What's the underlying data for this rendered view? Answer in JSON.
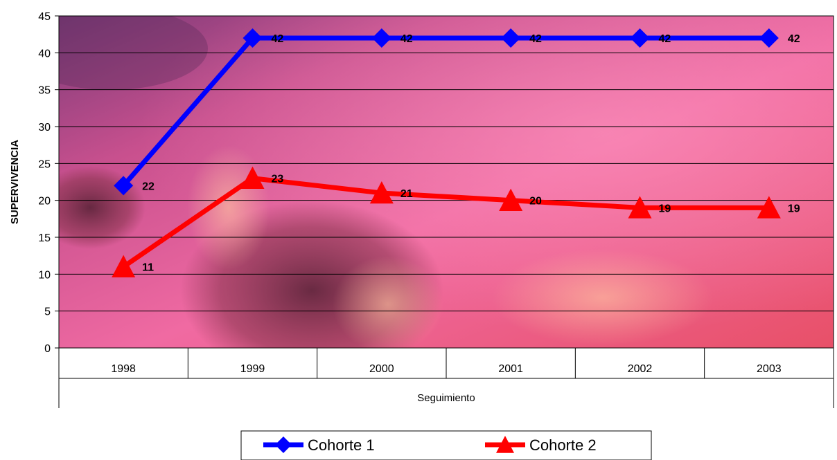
{
  "chart_data": {
    "type": "line",
    "categories": [
      "1998",
      "1999",
      "2000",
      "2001",
      "2002",
      "2003"
    ],
    "series": [
      {
        "name": "Cohorte 1",
        "values": [
          22,
          42,
          42,
          42,
          42,
          42
        ],
        "color": "#0000ff",
        "marker": "diamond"
      },
      {
        "name": "Cohorte 2",
        "values": [
          11,
          23,
          21,
          20,
          19,
          19
        ],
        "color": "#ff0000",
        "marker": "triangle"
      }
    ],
    "xlabel": "Seguimiento",
    "ylabel": "SUPERVIVENCIA",
    "ylim": [
      0,
      45
    ],
    "yticks": [
      "0",
      "5",
      "10",
      "15",
      "20",
      "25",
      "30",
      "35",
      "40",
      "45"
    ],
    "grid": true,
    "legend_position": "bottom",
    "data_labels": true,
    "background": "sunset-sky photo"
  }
}
